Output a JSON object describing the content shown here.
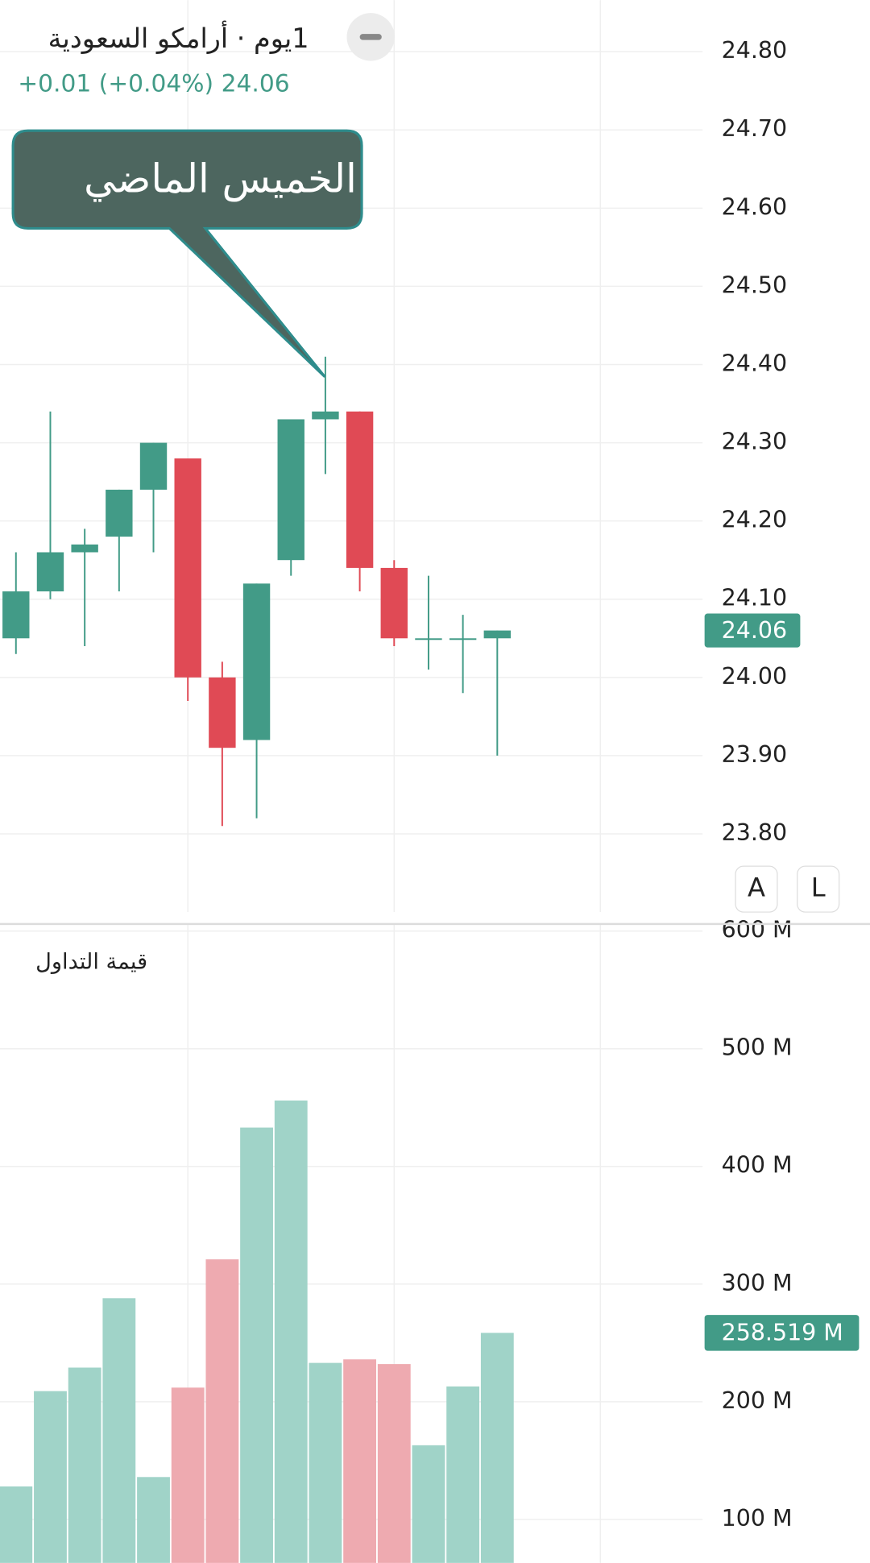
{
  "header": {
    "title": "1يوم · أرامكو السعودية",
    "price": "24.06",
    "change": "+0.01 (+0.04%)"
  },
  "buttons": [
    "A",
    "L"
  ],
  "chart_data": [
    {
      "type": "candlestick",
      "up_color": "#429b87",
      "down_color": "#e04a55",
      "grid": true,
      "open": [
        24.05,
        24.11,
        24.16,
        24.18,
        24.24,
        24.28,
        24.0,
        23.92,
        24.15,
        24.33,
        24.34,
        24.14,
        24.05,
        24.05,
        24.05
      ],
      "high": [
        24.16,
        24.34,
        24.19,
        24.24,
        24.3,
        24.28,
        24.02,
        24.12,
        24.33,
        24.41,
        24.34,
        24.15,
        24.13,
        24.08,
        24.06
      ],
      "low": [
        24.03,
        24.1,
        24.04,
        24.11,
        24.16,
        23.97,
        23.81,
        23.82,
        24.13,
        24.26,
        24.11,
        24.04,
        24.01,
        23.98,
        23.9
      ],
      "close": [
        24.11,
        24.16,
        24.17,
        24.24,
        24.3,
        24.0,
        23.91,
        24.12,
        24.33,
        24.34,
        24.14,
        24.05,
        24.05,
        24.05,
        24.06
      ],
      "ylim": [
        23.7,
        24.866
      ],
      "yticks": [
        {
          "value": 24.8,
          "label": "24.80"
        },
        {
          "value": 24.7,
          "label": "24.70"
        },
        {
          "value": 24.6,
          "label": "24.60"
        },
        {
          "value": 24.5,
          "label": "24.50"
        },
        {
          "value": 24.4,
          "label": "24.40"
        },
        {
          "value": 24.3,
          "label": "24.30"
        },
        {
          "value": 24.2,
          "label": "24.20"
        },
        {
          "value": 24.1,
          "label": "24.10"
        },
        {
          "value": 24.06,
          "label": "24.06"
        },
        {
          "value": 24.0,
          "label": "24.00"
        },
        {
          "value": 23.9,
          "label": "23.90"
        },
        {
          "value": 23.8,
          "label": "23.80"
        }
      ],
      "annotations": [
        {
          "text": "الخميس الماضي"
        }
      ]
    },
    {
      "type": "bar",
      "title": "قيمة التداول",
      "grid": true,
      "values": [
        128,
        209,
        229,
        288,
        136,
        212,
        321,
        433,
        456,
        233,
        236,
        232,
        163,
        213,
        258.519
      ],
      "value_labels": [
        null,
        null,
        null,
        null,
        null,
        null,
        null,
        null,
        null,
        null,
        null,
        null,
        null,
        null,
        "258.519 M"
      ],
      "colors": [
        "#a0d3c8",
        "#a0d3c8",
        "#a0d3c8",
        "#a0d3c8",
        "#a0d3c8",
        "#eeaab0",
        "#eeaab0",
        "#a0d3c8",
        "#a0d3c8",
        "#a0d3c8",
        "#eeaab0",
        "#eeaab0",
        "#a0d3c8",
        "#a0d3c8",
        "#a0d3c8"
      ],
      "tag_color": "#429b87",
      "ylim": [
        63,
        606
      ],
      "yticks": [
        {
          "value": 600,
          "label": "600 M"
        },
        {
          "value": 500,
          "label": "500 M"
        },
        {
          "value": 400,
          "label": "400 M"
        },
        {
          "value": 300,
          "label": "300 M"
        },
        {
          "value": 200,
          "label": "200 M"
        },
        {
          "value": 100,
          "label": "100 M"
        }
      ]
    }
  ]
}
